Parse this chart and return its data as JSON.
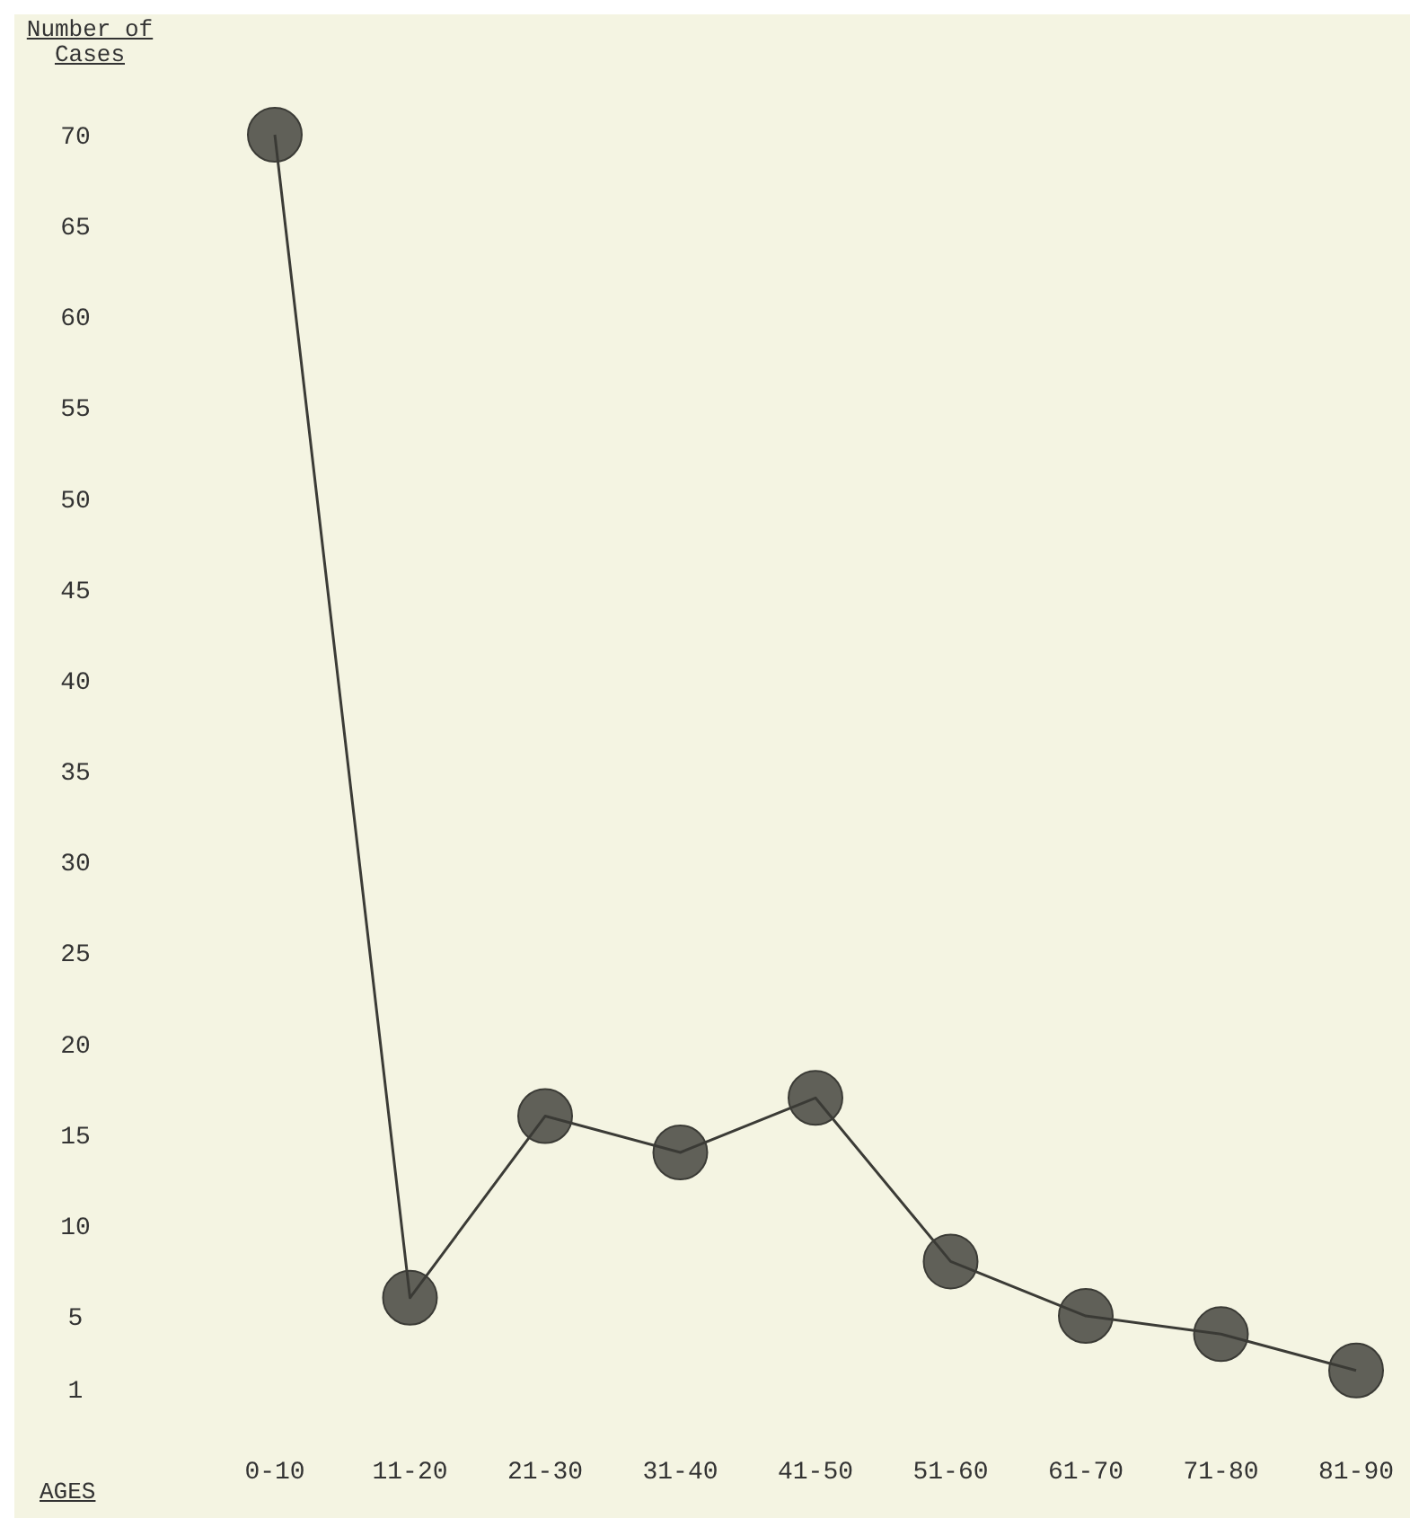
{
  "chart_data": {
    "type": "line",
    "xlabel": "AGES",
    "ylabel": "Number of Cases",
    "categories": [
      "0-10",
      "11-20",
      "21-30",
      "31-40",
      "41-50",
      "51-60",
      "61-70",
      "71-80",
      "81-90"
    ],
    "series": [
      {
        "color": "#3b3b36",
        "values": [
          70,
          6,
          16,
          14,
          17,
          8,
          5,
          4,
          2
        ]
      }
    ],
    "ylim": [
      1,
      70
    ],
    "yticks": [
      1,
      5,
      10,
      15,
      20,
      25,
      30,
      35,
      40,
      45,
      50,
      55,
      60,
      65,
      70
    ],
    "marker": "circle",
    "line_style": "solid"
  }
}
